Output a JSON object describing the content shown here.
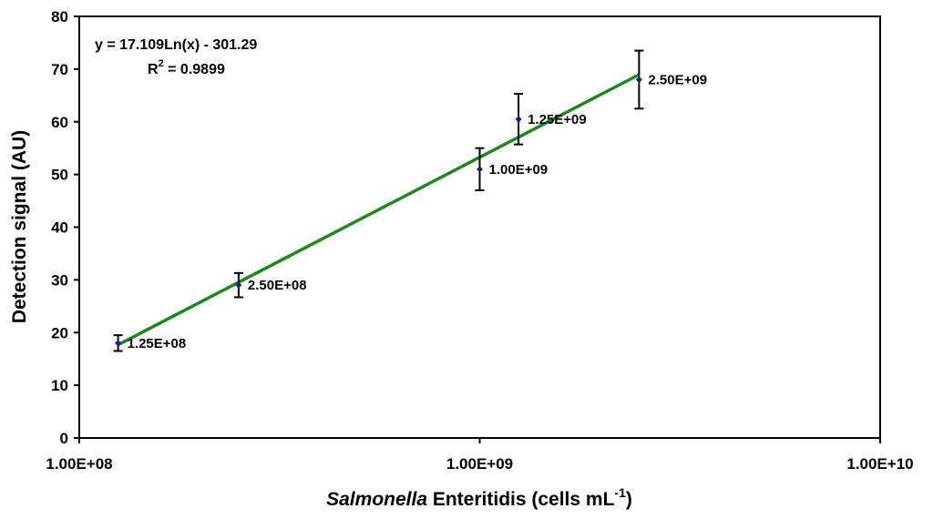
{
  "chart_data": {
    "type": "scatter",
    "x_scale": "log",
    "xlim": [
      100000000,
      10000000000
    ],
    "ylim": [
      0,
      80
    ],
    "y_ticks": [
      0,
      10,
      20,
      30,
      40,
      50,
      60,
      70,
      80
    ],
    "y_tick_labels": [
      "0",
      "10",
      "20",
      "30",
      "40",
      "50",
      "60",
      "70",
      "80"
    ],
    "x_ticks": [
      100000000,
      1000000000,
      10000000000
    ],
    "x_tick_labels": [
      "1.00E+08",
      "1.00E+09",
      "1.00E+10"
    ],
    "ylabel": "Detection signal (AU)",
    "xlabel": {
      "italic": "Salmonella",
      "rest": " Enteritidis (cells mL",
      "sup": "-1",
      "close": ")"
    },
    "series": [
      {
        "name": "Detection signal",
        "color": "#1a1a8c",
        "x": [
          125000000,
          250000000,
          1000000000,
          1250000000,
          2500000000
        ],
        "y": [
          18,
          29,
          51,
          60.5,
          68
        ],
        "error": [
          1.5,
          2.3,
          4,
          4.8,
          5.5
        ],
        "labels": [
          "1.25E+08",
          "2.50E+08",
          "1.00E+09",
          "1.25E+09",
          "2.50E+09"
        ]
      }
    ],
    "trendline": {
      "type": "log",
      "color": "#1a8a1a",
      "slope": 17.109,
      "intercept": -301.29,
      "x_range": [
        125000000,
        2500000000
      ],
      "equation": "y = 17.109Ln(x) - 301.29",
      "r2_prefix": "R",
      "r2_sup": "2",
      "r2_value": " = 0.9899"
    }
  }
}
